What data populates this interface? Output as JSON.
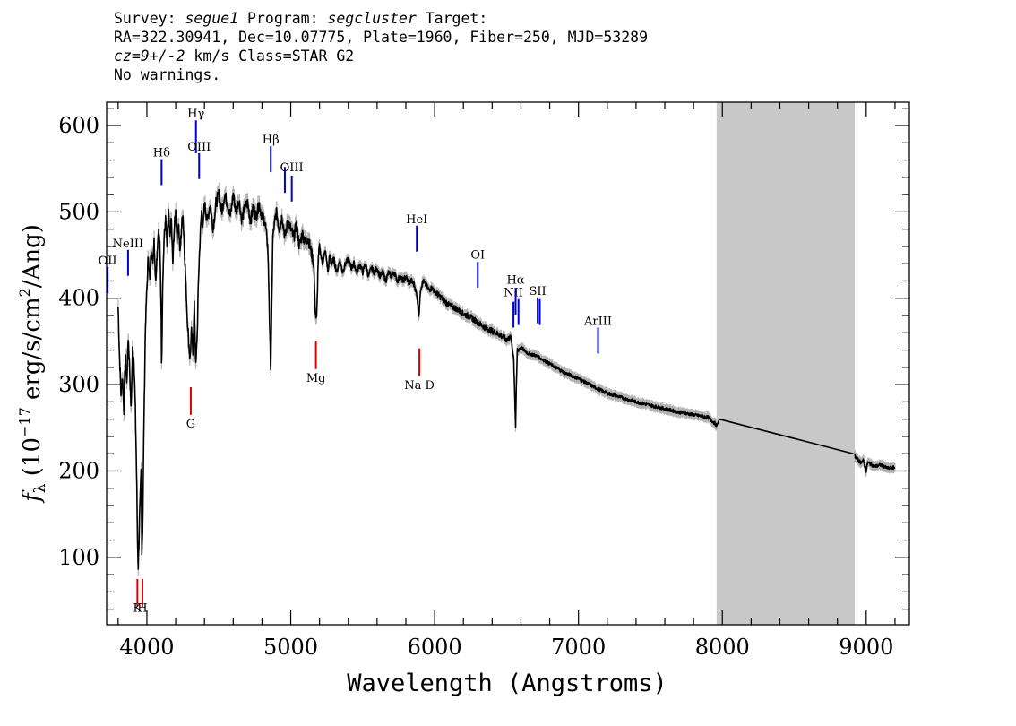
{
  "header": {
    "line1": {
      "survey_label": "Survey: ",
      "survey": "segue1",
      "program_label": " Program: ",
      "program": "segcluster",
      "target_label": " Target:"
    },
    "line2": "RA=322.30941, Dec=10.07775, Plate=1960, Fiber=250, MJD=53289",
    "line3": {
      "cz": "cz=9+/-2",
      "rest": " km/s Class=STAR G2"
    },
    "line4": "No warnings."
  },
  "chart_data": {
    "type": "line",
    "xlabel": "Wavelength (Angstroms)",
    "ylabel_main": "f",
    "ylabel_sub": "λ",
    "ylabel_rest_a": " (10",
    "ylabel_exp1": "−17",
    "ylabel_rest_b": " erg/s/cm",
    "ylabel_exp2": "2",
    "ylabel_rest_c": "/Ang)",
    "xlim": [
      3720,
      9300
    ],
    "ylim": [
      22,
      627
    ],
    "xticks": [
      4000,
      5000,
      6000,
      7000,
      8000,
      9000
    ],
    "yticks": [
      100,
      200,
      300,
      400,
      500,
      600
    ],
    "masked_region": [
      7960,
      8920
    ],
    "colors": {
      "spectrum": "#000000",
      "error": "#b4b4b4",
      "emission": "#0000cc",
      "absorption": "#dd0000",
      "mask": "#c8c8c8"
    },
    "series": [
      {
        "spectrum": [
          [
            3800,
            390
          ],
          [
            3810,
            330
          ],
          [
            3820,
            290
          ],
          [
            3830,
            310
          ],
          [
            3840,
            270
          ],
          [
            3850,
            335
          ],
          [
            3860,
            300
          ],
          [
            3870,
            355
          ],
          [
            3880,
            320
          ],
          [
            3890,
            270
          ],
          [
            3900,
            340
          ],
          [
            3910,
            330
          ],
          [
            3920,
            270
          ],
          [
            3930,
            180
          ],
          [
            3935,
            120
          ],
          [
            3940,
            90
          ],
          [
            3950,
            150
          ],
          [
            3960,
            200
          ],
          [
            3965,
            110
          ],
          [
            3970,
            130
          ],
          [
            3980,
            260
          ],
          [
            3990,
            370
          ],
          [
            4000,
            410
          ],
          [
            4010,
            450
          ],
          [
            4020,
            420
          ],
          [
            4030,
            460
          ],
          [
            4040,
            440
          ],
          [
            4050,
            470
          ],
          [
            4060,
            420
          ],
          [
            4070,
            450
          ],
          [
            4080,
            480
          ],
          [
            4090,
            460
          ],
          [
            4100,
            380
          ],
          [
            4102,
            320
          ],
          [
            4110,
            420
          ],
          [
            4120,
            470
          ],
          [
            4130,
            490
          ],
          [
            4140,
            460
          ],
          [
            4150,
            500
          ],
          [
            4160,
            470
          ],
          [
            4170,
            490
          ],
          [
            4180,
            440
          ],
          [
            4190,
            480
          ],
          [
            4200,
            500
          ],
          [
            4210,
            470
          ],
          [
            4220,
            490
          ],
          [
            4230,
            450
          ],
          [
            4240,
            480
          ],
          [
            4250,
            500
          ],
          [
            4260,
            460
          ],
          [
            4270,
            420
          ],
          [
            4280,
            380
          ],
          [
            4290,
            350
          ],
          [
            4300,
            330
          ],
          [
            4310,
            360
          ],
          [
            4320,
            340
          ],
          [
            4330,
            390
          ],
          [
            4340,
            320
          ],
          [
            4350,
            360
          ],
          [
            4360,
            430
          ],
          [
            4370,
            470
          ],
          [
            4380,
            500
          ],
          [
            4390,
            480
          ],
          [
            4400,
            510
          ],
          [
            4420,
            490
          ],
          [
            4440,
            510
          ],
          [
            4460,
            480
          ],
          [
            4480,
            510
          ],
          [
            4500,
            520
          ],
          [
            4520,
            500
          ],
          [
            4540,
            520
          ],
          [
            4560,
            510
          ],
          [
            4580,
            495
          ],
          [
            4600,
            520
          ],
          [
            4620,
            500
          ],
          [
            4640,
            515
          ],
          [
            4660,
            490
          ],
          [
            4680,
            505
          ],
          [
            4700,
            510
          ],
          [
            4720,
            490
          ],
          [
            4740,
            505
          ],
          [
            4760,
            495
          ],
          [
            4780,
            510
          ],
          [
            4800,
            495
          ],
          [
            4820,
            490
          ],
          [
            4840,
            460
          ],
          [
            4850,
            400
          ],
          [
            4855,
            350
          ],
          [
            4861,
            320
          ],
          [
            4867,
            380
          ],
          [
            4875,
            470
          ],
          [
            4890,
            490
          ],
          [
            4900,
            500
          ],
          [
            4920,
            480
          ],
          [
            4940,
            495
          ],
          [
            4960,
            470
          ],
          [
            4980,
            490
          ],
          [
            5000,
            480
          ],
          [
            5020,
            470
          ],
          [
            5040,
            485
          ],
          [
            5060,
            460
          ],
          [
            5080,
            475
          ],
          [
            5100,
            465
          ],
          [
            5120,
            470
          ],
          [
            5140,
            455
          ],
          [
            5160,
            440
          ],
          [
            5167,
            400
          ],
          [
            5173,
            380
          ],
          [
            5180,
            375
          ],
          [
            5184,
            400
          ],
          [
            5190,
            440
          ],
          [
            5200,
            460
          ],
          [
            5220,
            440
          ],
          [
            5240,
            455
          ],
          [
            5260,
            430
          ],
          [
            5270,
            450
          ],
          [
            5280,
            440
          ],
          [
            5300,
            445
          ],
          [
            5320,
            430
          ],
          [
            5340,
            445
          ],
          [
            5360,
            430
          ],
          [
            5380,
            440
          ],
          [
            5400,
            445
          ],
          [
            5420,
            435
          ],
          [
            5440,
            440
          ],
          [
            5460,
            430
          ],
          [
            5480,
            440
          ],
          [
            5500,
            430
          ],
          [
            5520,
            440
          ],
          [
            5540,
            425
          ],
          [
            5560,
            435
          ],
          [
            5580,
            430
          ],
          [
            5600,
            435
          ],
          [
            5620,
            425
          ],
          [
            5640,
            430
          ],
          [
            5660,
            420
          ],
          [
            5680,
            430
          ],
          [
            5700,
            425
          ],
          [
            5720,
            430
          ],
          [
            5740,
            420
          ],
          [
            5760,
            425
          ],
          [
            5780,
            420
          ],
          [
            5800,
            425
          ],
          [
            5820,
            418
          ],
          [
            5840,
            420
          ],
          [
            5860,
            415
          ],
          [
            5880,
            400
          ],
          [
            5886,
            385
          ],
          [
            5890,
            380
          ],
          [
            5896,
            390
          ],
          [
            5900,
            410
          ],
          [
            5920,
            420
          ],
          [
            5940,
            415
          ],
          [
            5960,
            410
          ],
          [
            5980,
            412
          ],
          [
            6000,
            408
          ],
          [
            6050,
            400
          ],
          [
            6100,
            392
          ],
          [
            6150,
            388
          ],
          [
            6200,
            382
          ],
          [
            6250,
            378
          ],
          [
            6300,
            372
          ],
          [
            6350,
            366
          ],
          [
            6400,
            362
          ],
          [
            6450,
            358
          ],
          [
            6500,
            352
          ],
          [
            6530,
            355
          ],
          [
            6550,
            330
          ],
          [
            6560,
            270
          ],
          [
            6563,
            250
          ],
          [
            6567,
            290
          ],
          [
            6575,
            340
          ],
          [
            6600,
            343
          ],
          [
            6650,
            336
          ],
          [
            6700,
            334
          ],
          [
            6800,
            324
          ],
          [
            6900,
            314
          ],
          [
            7000,
            307
          ],
          [
            7100,
            298
          ],
          [
            7200,
            290
          ],
          [
            7300,
            285
          ],
          [
            7400,
            280
          ],
          [
            7500,
            276
          ],
          [
            7600,
            272
          ],
          [
            7700,
            268
          ],
          [
            7800,
            265
          ],
          [
            7900,
            262
          ],
          [
            7950,
            255
          ],
          [
            7960,
            252
          ],
          [
            7980,
            260
          ],
          [
            8920,
            218
          ],
          [
            8930,
            215
          ],
          [
            8960,
            210
          ],
          [
            8980,
            212
          ],
          [
            9000,
            200
          ],
          [
            9010,
            210
          ],
          [
            9030,
            208
          ],
          [
            9060,
            205
          ],
          [
            9100,
            207
          ],
          [
            9150,
            203
          ],
          [
            9200,
            204
          ]
        ]
      }
    ],
    "lines": [
      {
        "label": "OII",
        "lambda": 3727,
        "y0": 406,
        "y1": 436,
        "kind": "emission",
        "label_y": 436
      },
      {
        "label": "NeIII",
        "lambda": 3869,
        "y0": 426,
        "y1": 456,
        "kind": "emission",
        "label_y": 456
      },
      {
        "label": "Hδ",
        "lambda": 4102,
        "y0": 531,
        "y1": 561,
        "kind": "emission",
        "label_y": 561
      },
      {
        "label": "Hγ",
        "lambda": 4341,
        "y0": 568,
        "y1": 606,
        "kind": "emission",
        "label_y": 606
      },
      {
        "label": "OIII",
        "lambda": 4363,
        "y0": 538,
        "y1": 568,
        "kind": "emission",
        "label_y": 568
      },
      {
        "label": "Hβ",
        "lambda": 4861,
        "y0": 546,
        "y1": 576,
        "kind": "emission",
        "label_y": 576
      },
      {
        "label": "OIII",
        "lambda": 4959,
        "y0": 522,
        "y1": 552,
        "kind": "emission",
        "label_y": 0
      },
      {
        "label": "OIII",
        "lambda": 5007,
        "y0": 512,
        "y1": 542,
        "kind": "emission",
        "label_y": 544
      },
      {
        "label": "HeI",
        "lambda": 5876,
        "y0": 454,
        "y1": 484,
        "kind": "emission",
        "label_y": 484
      },
      {
        "label": "OI",
        "lambda": 6300,
        "y0": 412,
        "y1": 442,
        "kind": "emission",
        "label_y": 443
      },
      {
        "label": "NII",
        "lambda": 6548,
        "y0": 366,
        "y1": 396,
        "kind": "emission",
        "label_y": 399
      },
      {
        "label": "Hα",
        "lambda": 6563,
        "y0": 381,
        "y1": 411,
        "kind": "emission",
        "label_y": 414
      },
      {
        "label": "NII",
        "lambda": 6583,
        "y0": 369,
        "y1": 399,
        "kind": "emission",
        "label_y": 0
      },
      {
        "label": "SII",
        "lambda": 6716,
        "y0": 371,
        "y1": 401,
        "kind": "emission",
        "label_y": 401
      },
      {
        "label": "SII",
        "lambda": 6731,
        "y0": 369,
        "y1": 399,
        "kind": "emission",
        "label_y": 0
      },
      {
        "label": "ArIII",
        "lambda": 7136,
        "y0": 336,
        "y1": 366,
        "kind": "emission",
        "label_y": 366
      },
      {
        "label": "K",
        "lambda": 3934,
        "y0": 43,
        "y1": 75,
        "kind": "absorption",
        "label_y": 34
      },
      {
        "label": "H",
        "lambda": 3969,
        "y0": 43,
        "y1": 75,
        "kind": "absorption",
        "label_y": 34
      },
      {
        "label": "G",
        "lambda": 4305,
        "y0": 265,
        "y1": 297,
        "kind": "absorption",
        "label_y": 247
      },
      {
        "label": "Mg",
        "lambda": 5175,
        "y0": 318,
        "y1": 350,
        "kind": "absorption",
        "label_y": 300
      },
      {
        "label": "Na D",
        "lambda": 5894,
        "y0": 310,
        "y1": 342,
        "kind": "absorption",
        "label_y": 292
      }
    ]
  }
}
